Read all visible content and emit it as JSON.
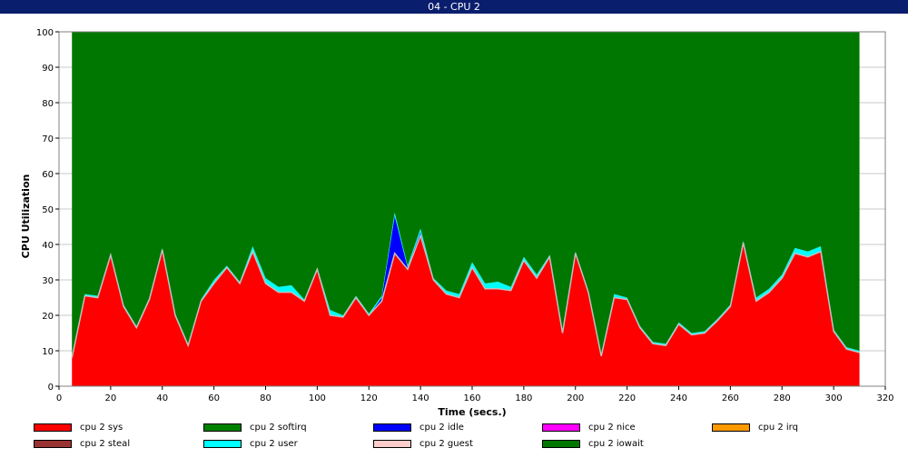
{
  "window": {
    "title": "04 - CPU 2"
  },
  "chart_data": {
    "type": "area",
    "title": "04 - CPU 2",
    "xlabel": "Time (secs.)",
    "ylabel": "CPU Utilization",
    "xlim": [
      0,
      320
    ],
    "ylim": [
      0,
      100
    ],
    "x_ticks": [
      0,
      20,
      40,
      60,
      80,
      100,
      120,
      140,
      160,
      180,
      200,
      220,
      240,
      260,
      280,
      300,
      320
    ],
    "y_ticks": [
      0,
      10,
      20,
      30,
      40,
      50,
      60,
      70,
      80,
      90,
      100
    ],
    "grid": true,
    "stacked": true,
    "legend_position": "bottom",
    "x": [
      5,
      10,
      15,
      20,
      25,
      30,
      35,
      40,
      45,
      50,
      55,
      60,
      65,
      70,
      75,
      80,
      85,
      90,
      95,
      100,
      105,
      110,
      115,
      120,
      125,
      130,
      135,
      140,
      145,
      150,
      155,
      160,
      165,
      170,
      175,
      180,
      185,
      190,
      195,
      200,
      205,
      210,
      215,
      220,
      225,
      230,
      235,
      240,
      245,
      250,
      255,
      260,
      265,
      270,
      275,
      280,
      285,
      290,
      295,
      300,
      305,
      310
    ],
    "series": [
      {
        "name": "cpu 2 sys",
        "color": "#ff0000",
        "values": [
          8,
          25.5,
          25,
          37,
          22.5,
          16.5,
          24.5,
          38.5,
          20,
          11.5,
          24,
          29,
          33.5,
          29,
          38,
          29,
          26.5,
          26.5,
          24,
          33,
          20,
          19.5,
          25,
          20,
          24,
          37.5,
          33,
          42.5,
          30,
          26,
          25,
          33.5,
          27.5,
          27.5,
          27,
          35.5,
          30.5,
          36.5,
          15,
          37.5,
          26.5,
          8.5,
          25,
          24.5,
          16.5,
          12,
          11.5,
          17.5,
          14.5,
          15,
          18.5,
          22.5,
          40.5,
          24,
          26.5,
          30.5,
          37.5,
          36.5,
          38,
          15.5,
          10.5,
          9.5
        ]
      },
      {
        "name": "cpu 2 softirq",
        "color": "#008000",
        "values": [
          0,
          0,
          0,
          0,
          0,
          0,
          0,
          0,
          0,
          0,
          0,
          0,
          0,
          0,
          0,
          0,
          0,
          0,
          0,
          0,
          0,
          0,
          0,
          0,
          0,
          0,
          0,
          0,
          0,
          0,
          0,
          0,
          0,
          0,
          0,
          0,
          0,
          0,
          0,
          0,
          0,
          0,
          0,
          0,
          0,
          0,
          0,
          0,
          0,
          0,
          0,
          0,
          0,
          0,
          0,
          0,
          0,
          0,
          0,
          0,
          0,
          0
        ]
      },
      {
        "name": "cpu 2 idle",
        "color": "#0000ff",
        "values": [
          0,
          0,
          0,
          0,
          0,
          0,
          0,
          0,
          0,
          0,
          0,
          0,
          0,
          0,
          0,
          0,
          0,
          0,
          0,
          0,
          0,
          0,
          0,
          0,
          1,
          10.5,
          0.5,
          1,
          0,
          0,
          0,
          0,
          0,
          0,
          0,
          0,
          0,
          0,
          0,
          0,
          0,
          0,
          0,
          0,
          0,
          0,
          0,
          0,
          0,
          0,
          0,
          0,
          0,
          0,
          0,
          0,
          0,
          0,
          0,
          0,
          0,
          0
        ]
      },
      {
        "name": "cpu 2 nice",
        "color": "#ff00ff",
        "values": [
          0,
          0,
          0,
          0,
          0,
          0,
          0,
          0,
          0,
          0,
          0,
          0,
          0,
          0,
          0,
          0,
          0,
          0,
          0,
          0,
          0,
          0,
          0,
          0,
          0,
          0,
          0,
          0,
          0,
          0,
          0,
          0,
          0,
          0,
          0,
          0,
          0,
          0,
          0,
          0,
          0,
          0,
          0,
          0,
          0,
          0,
          0,
          0,
          0,
          0,
          0,
          0,
          0,
          0,
          0,
          0,
          0,
          0,
          0,
          0,
          0,
          0
        ]
      },
      {
        "name": "cpu 2 irq",
        "color": "#ff9900",
        "values": [
          0,
          0,
          0,
          0,
          0,
          0,
          0,
          0,
          0,
          0,
          0,
          0,
          0,
          0,
          0,
          0,
          0,
          0,
          0,
          0,
          0,
          0,
          0,
          0,
          0,
          0,
          0,
          0,
          0,
          0,
          0,
          0,
          0,
          0,
          0,
          0,
          0,
          0,
          0,
          0,
          0,
          0,
          0,
          0,
          0,
          0,
          0,
          0,
          0,
          0,
          0,
          0,
          0,
          0,
          0,
          0,
          0,
          0,
          0,
          0,
          0,
          0
        ]
      },
      {
        "name": "cpu 2 steal",
        "color": "#993333",
        "values": [
          0,
          0,
          0,
          0,
          0,
          0,
          0,
          0,
          0,
          0,
          0,
          0,
          0,
          0,
          0,
          0,
          0,
          0,
          0,
          0,
          0,
          0,
          0,
          0,
          0,
          0,
          0,
          0,
          0,
          0,
          0,
          0,
          0,
          0,
          0,
          0,
          0,
          0,
          0,
          0,
          0,
          0,
          0,
          0,
          0,
          0,
          0,
          0,
          0,
          0,
          0,
          0,
          0,
          0,
          0,
          0,
          0,
          0,
          0,
          0,
          0,
          0
        ]
      },
      {
        "name": "cpu 2 user",
        "color": "#00ffff",
        "values": [
          0,
          0.5,
          0.5,
          0.5,
          0.5,
          0.5,
          0.5,
          0.5,
          0.5,
          0.5,
          0.5,
          1,
          0.5,
          0.5,
          1.5,
          1.5,
          1.5,
          2,
          0.5,
          0.5,
          1.5,
          0.5,
          0.5,
          0.5,
          0.5,
          1,
          0.5,
          1,
          0.5,
          1,
          1,
          1.5,
          1.5,
          2,
          1,
          1,
          1,
          0.5,
          0.5,
          0.5,
          0.5,
          0.5,
          1,
          0.5,
          0.5,
          0.5,
          0.5,
          0.5,
          0.5,
          0.5,
          0.5,
          0.5,
          0.5,
          1,
          1,
          1,
          1.5,
          1.5,
          1.5,
          0.5,
          0.5,
          0.5
        ]
      },
      {
        "name": "cpu 2 guest",
        "color": "#ffcccc",
        "values": [
          0,
          0,
          0,
          0,
          0,
          0,
          0,
          0,
          0,
          0,
          0,
          0,
          0,
          0,
          0,
          0,
          0,
          0,
          0,
          0,
          0,
          0,
          0,
          0,
          0,
          0,
          0,
          0,
          0,
          0,
          0,
          0,
          0,
          0,
          0,
          0,
          0,
          0,
          0,
          0,
          0,
          0,
          0,
          0,
          0,
          0,
          0,
          0,
          0,
          0,
          0,
          0,
          0,
          0,
          0,
          0,
          0,
          0,
          0,
          0,
          0,
          0
        ]
      },
      {
        "name": "cpu 2 iowait",
        "color": "#007700",
        "values": [
          92,
          74,
          74.5,
          62.5,
          77,
          83,
          75,
          61,
          79.5,
          88,
          75.5,
          70,
          66,
          70.5,
          60.5,
          69.5,
          72,
          71.5,
          75.5,
          66.5,
          78.5,
          80,
          74.5,
          79.5,
          74.5,
          51,
          66,
          55.5,
          69.5,
          73,
          74,
          65,
          71,
          70.5,
          72,
          63.5,
          68.5,
          63,
          84.5,
          62,
          73,
          91,
          74,
          75,
          83,
          87.5,
          88,
          82,
          85,
          84.5,
          81,
          77,
          59,
          75,
          72.5,
          68.5,
          61,
          62,
          60.5,
          84,
          89,
          90
        ]
      }
    ]
  }
}
